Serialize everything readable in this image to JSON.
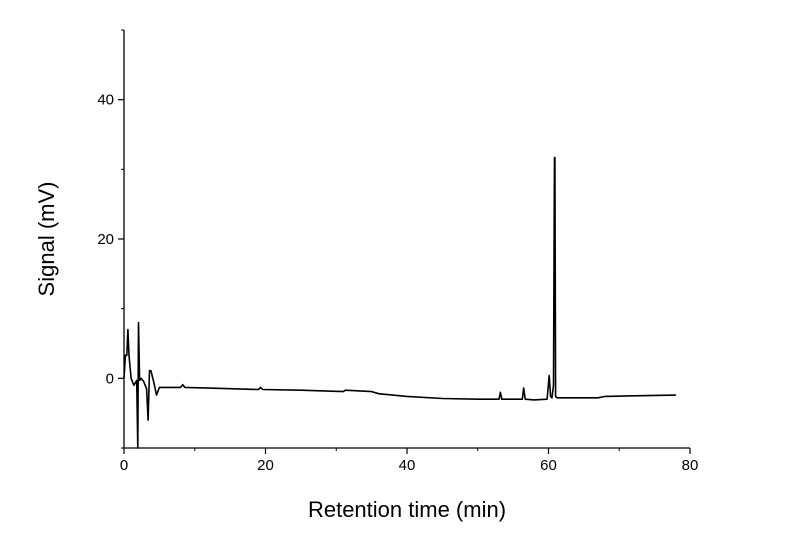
{
  "chart_data": {
    "type": "line",
    "title": "",
    "xlabel": "Retention time (min)",
    "ylabel": "Signal (mV)",
    "xlim": [
      0,
      80
    ],
    "ylim": [
      -10,
      50
    ],
    "xticks": [
      0,
      20,
      40,
      60,
      80
    ],
    "yticks": [
      0,
      20,
      40
    ],
    "grid": false,
    "line_color": "#000000",
    "series": [
      {
        "x": [
          0,
          0.2,
          0.4,
          0.55,
          0.7,
          1.0,
          1.4,
          1.8,
          1.95,
          2.05,
          2.2,
          2.4,
          2.8,
          3.2,
          3.4,
          3.6,
          3.8,
          4.2,
          4.6,
          5.0,
          5.5,
          8.0,
          8.3,
          8.6,
          12,
          19,
          19.3,
          19.6,
          25,
          31,
          31.3,
          35,
          36,
          40,
          45,
          50,
          53.0,
          53.2,
          53.4,
          55,
          56.3,
          56.5,
          56.7,
          58,
          59.8,
          60.1,
          60.3,
          60.5,
          60.7,
          60.8,
          60.85,
          60.9,
          61.0,
          61.2,
          62,
          67,
          68,
          72,
          78
        ],
        "y": [
          0,
          3.3,
          3.3,
          7,
          3.3,
          0,
          -1,
          -0.3,
          -10,
          8,
          -0.3,
          0,
          -0.5,
          -1.5,
          -6,
          1.1,
          1.1,
          -0.5,
          -2.4,
          -1.3,
          -1.3,
          -1.3,
          -0.9,
          -1.3,
          -1.4,
          -1.6,
          -1.3,
          -1.6,
          -1.7,
          -1.9,
          -1.7,
          -1.9,
          -2.2,
          -2.6,
          -2.9,
          -3.0,
          -3.0,
          -2.0,
          -3.0,
          -3.0,
          -3.0,
          -1.4,
          -3.0,
          -3.1,
          -3.0,
          0.4,
          -2.6,
          -2.8,
          -1.0,
          23.2,
          31.7,
          31.7,
          -2.6,
          -2.8,
          -2.8,
          -2.8,
          -2.6,
          -2.5,
          -2.4
        ]
      }
    ]
  }
}
